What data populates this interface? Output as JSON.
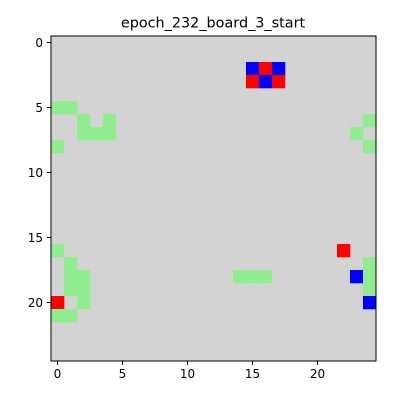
{
  "title": "epoch_232_board_3_start",
  "board": {
    "rows": 25,
    "cols": 25,
    "background_color": "#d3d3d3",
    "colors": {
      "green": "#90ee90",
      "red": "#ff0000",
      "blue": "#0000ff"
    },
    "cells": [
      {
        "row": 2,
        "col": 15,
        "color": "blue"
      },
      {
        "row": 2,
        "col": 16,
        "color": "red"
      },
      {
        "row": 2,
        "col": 17,
        "color": "blue"
      },
      {
        "row": 3,
        "col": 15,
        "color": "red"
      },
      {
        "row": 3,
        "col": 16,
        "color": "blue"
      },
      {
        "row": 3,
        "col": 17,
        "color": "red"
      },
      {
        "row": 5,
        "col": 0,
        "color": "green"
      },
      {
        "row": 5,
        "col": 1,
        "color": "green"
      },
      {
        "row": 6,
        "col": 2,
        "color": "green"
      },
      {
        "row": 6,
        "col": 4,
        "color": "green"
      },
      {
        "row": 7,
        "col": 2,
        "color": "green"
      },
      {
        "row": 7,
        "col": 3,
        "color": "green"
      },
      {
        "row": 7,
        "col": 4,
        "color": "green"
      },
      {
        "row": 8,
        "col": 0,
        "color": "green"
      },
      {
        "row": 6,
        "col": 24,
        "color": "green"
      },
      {
        "row": 7,
        "col": 23,
        "color": "green"
      },
      {
        "row": 8,
        "col": 24,
        "color": "green"
      },
      {
        "row": 16,
        "col": 0,
        "color": "green"
      },
      {
        "row": 17,
        "col": 1,
        "color": "green"
      },
      {
        "row": 18,
        "col": 1,
        "color": "green"
      },
      {
        "row": 18,
        "col": 2,
        "color": "green"
      },
      {
        "row": 19,
        "col": 1,
        "color": "green"
      },
      {
        "row": 19,
        "col": 2,
        "color": "green"
      },
      {
        "row": 20,
        "col": 0,
        "color": "red"
      },
      {
        "row": 20,
        "col": 2,
        "color": "green"
      },
      {
        "row": 21,
        "col": 0,
        "color": "green"
      },
      {
        "row": 21,
        "col": 1,
        "color": "green"
      },
      {
        "row": 18,
        "col": 14,
        "color": "green"
      },
      {
        "row": 18,
        "col": 15,
        "color": "green"
      },
      {
        "row": 18,
        "col": 16,
        "color": "green"
      },
      {
        "row": 16,
        "col": 22,
        "color": "red"
      },
      {
        "row": 17,
        "col": 24,
        "color": "green"
      },
      {
        "row": 18,
        "col": 23,
        "color": "blue"
      },
      {
        "row": 18,
        "col": 24,
        "color": "green"
      },
      {
        "row": 19,
        "col": 24,
        "color": "green"
      },
      {
        "row": 20,
        "col": 24,
        "color": "blue"
      }
    ]
  },
  "axes": {
    "x_ticks": [
      0,
      5,
      10,
      15,
      20
    ],
    "y_ticks": [
      0,
      5,
      10,
      15,
      20
    ]
  }
}
